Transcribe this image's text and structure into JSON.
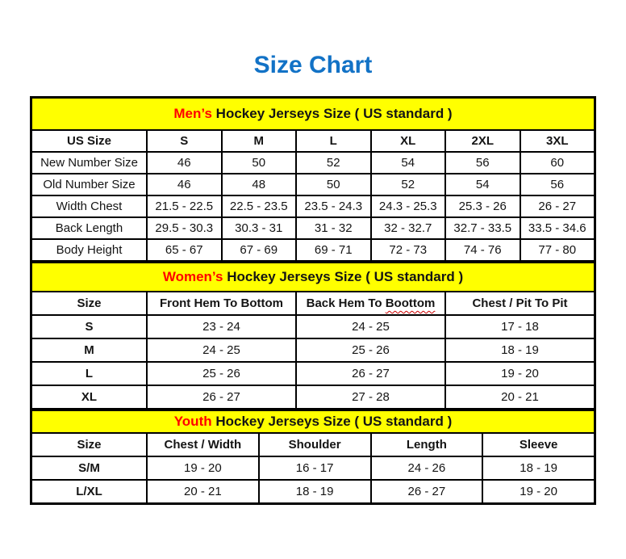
{
  "page": {
    "title": "Size Chart"
  },
  "colors": {
    "title_blue": "#1272C6",
    "highlight_red": "#FF0000",
    "band_yellow": "#FFFF00",
    "text_black": "#141414"
  },
  "men": {
    "title_highlight": "Men’s",
    "title_rest": "Hockey Jerseys Size ( US standard )",
    "col_headers": [
      "US Size",
      "S",
      "M",
      "L",
      "XL",
      "2XL",
      "3XL"
    ],
    "rows": [
      {
        "label": "New Number Size",
        "values": [
          "46",
          "50",
          "52",
          "54",
          "56",
          "60"
        ]
      },
      {
        "label": "Old Number Size",
        "values": [
          "46",
          "48",
          "50",
          "52",
          "54",
          "56"
        ]
      },
      {
        "label": "Width Chest",
        "values": [
          "21.5 - 22.5",
          "22.5 - 23.5",
          "23.5 - 24.3",
          "24.3 - 25.3",
          "25.3 - 26",
          "26 - 27"
        ]
      },
      {
        "label": "Back Length",
        "values": [
          "29.5 - 30.3",
          "30.3 - 31",
          "31 - 32",
          "32 - 32.7",
          "32.7 - 33.5",
          "33.5 - 34.6"
        ]
      },
      {
        "label": "Body Height",
        "values": [
          "65 - 67",
          "67 - 69",
          "69 - 71",
          "72 - 73",
          "74 - 76",
          "77 - 80"
        ]
      }
    ]
  },
  "women": {
    "title_highlight": "Women’s",
    "title_rest": "Hockey Jerseys Size ( US standard )",
    "col_headers": [
      "Size",
      "Front Hem To Bottom",
      "Back Hem To",
      "Chest / Pit To Pit"
    ],
    "col_back_misspelled_word": "Boottom",
    "rows": [
      {
        "label": "S",
        "values": [
          "23 - 24",
          "24 - 25",
          "17 - 18"
        ]
      },
      {
        "label": "M",
        "values": [
          "24 - 25",
          "25 - 26",
          "18 - 19"
        ]
      },
      {
        "label": "L",
        "values": [
          "25 - 26",
          "26 - 27",
          "19 - 20"
        ]
      },
      {
        "label": "XL",
        "values": [
          "26 - 27",
          "27 - 28",
          "20 - 21"
        ]
      }
    ]
  },
  "youth": {
    "title_highlight": "Youth",
    "title_rest": "Hockey Jerseys Size ( US standard )",
    "col_headers": [
      "Size",
      "Chest / Width",
      "Shoulder",
      "Length",
      "Sleeve"
    ],
    "rows": [
      {
        "label": "S/M",
        "values": [
          "19 - 20",
          "16 - 17",
          "24 - 26",
          "18 - 19"
        ]
      },
      {
        "label": "L/XL",
        "values": [
          "20 - 21",
          "18 - 19",
          "26 - 27",
          "19 - 20"
        ]
      }
    ]
  }
}
